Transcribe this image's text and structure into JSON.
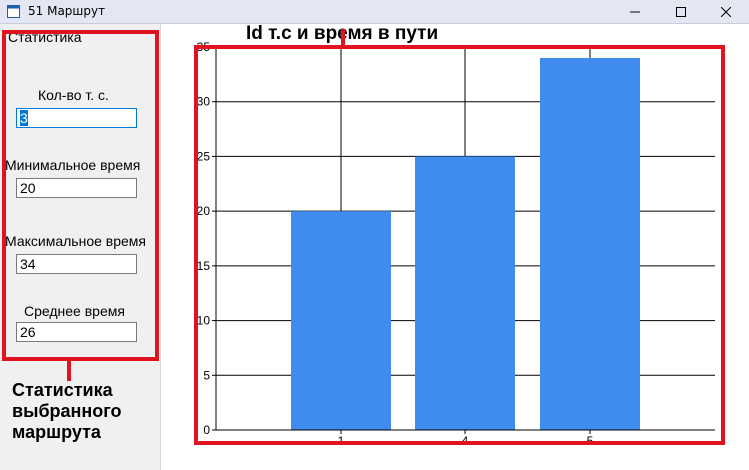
{
  "window": {
    "title": "51 Маршрут",
    "icon": "app-window-icon",
    "controls": [
      "minimize-icon",
      "maximize-icon",
      "close-icon"
    ]
  },
  "stats_panel": {
    "group_title": "Статистика",
    "fields": [
      {
        "label": "Кол-во т. с.",
        "value": "3"
      },
      {
        "label": "Минимальное время",
        "value": "20"
      },
      {
        "label": "Максимальное время",
        "value": "34"
      },
      {
        "label": "Среднее время",
        "value": "26"
      }
    ]
  },
  "annotations": {
    "callout_text": [
      "Статистика",
      "выбранного",
      "маршрута"
    ],
    "highlight_color": "#e0141e"
  },
  "chart_data": {
    "type": "bar",
    "title": "Id т.с и время в пути",
    "categories": [
      "1",
      "4",
      "5"
    ],
    "values": [
      20,
      25,
      34
    ],
    "ylim": [
      0,
      35
    ],
    "yticks": [
      "0",
      "5",
      "10",
      "15",
      "20",
      "25",
      "30",
      "35"
    ],
    "grid": true,
    "bar_color": "#3f8cee"
  }
}
